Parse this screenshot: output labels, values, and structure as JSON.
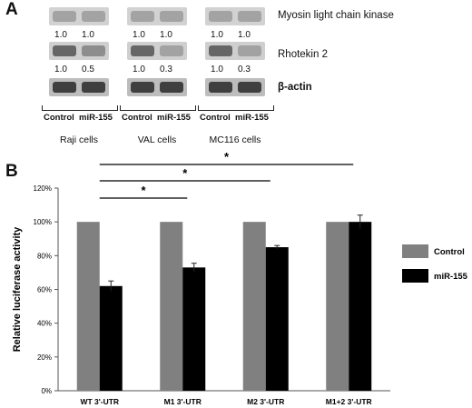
{
  "panel_a": {
    "letter": "A",
    "proteins": [
      "Myosin light chain kinase",
      "Rhotekin 2",
      "β-actin"
    ],
    "groups": [
      {
        "cell_line": "Raji cells",
        "lanes": [
          "Control",
          "miR-155"
        ],
        "mlck": [
          "1.0",
          "1.0"
        ],
        "rhotekin": [
          "1.0",
          "0.5"
        ]
      },
      {
        "cell_line": "VAL cells",
        "lanes": [
          "Control",
          "miR-155"
        ],
        "mlck": [
          "1.0",
          "1.0"
        ],
        "rhotekin": [
          "1.0",
          "0.3"
        ]
      },
      {
        "cell_line": "MC116 cells",
        "lanes": [
          "Control",
          "miR-155"
        ],
        "mlck": [
          "1.0",
          "1.0"
        ],
        "rhotekin": [
          "1.0",
          "0.3"
        ]
      }
    ]
  },
  "panel_b": {
    "letter": "B"
  },
  "chart_data": {
    "type": "bar",
    "categories": [
      "WT 3'-UTR",
      "M1 3'-UTR",
      "M2 3'-UTR",
      "M1+2 3'-UTR"
    ],
    "series": [
      {
        "name": "Control",
        "values": [
          100,
          100,
          100,
          100
        ],
        "errors": [
          0,
          0,
          0,
          0
        ],
        "color": "#808080"
      },
      {
        "name": "miR-155",
        "values": [
          62,
          73,
          85,
          100
        ],
        "errors": [
          3,
          2.5,
          1,
          4
        ],
        "color": "#000000"
      }
    ],
    "ylabel": "Relative luciferase activity",
    "ylim": [
      0,
      120
    ],
    "yticks": [
      0,
      20,
      40,
      60,
      80,
      100,
      120
    ],
    "ytick_labels": [
      "0%",
      "20%",
      "40%",
      "60%",
      "80%",
      "100%",
      "120%"
    ],
    "grid": false,
    "legend_position": "right",
    "significance": [
      {
        "from": 0,
        "to": 1,
        "label": "*"
      },
      {
        "from": 0,
        "to": 2,
        "label": "*"
      },
      {
        "from": 0,
        "to": 3,
        "label": "*"
      }
    ]
  }
}
